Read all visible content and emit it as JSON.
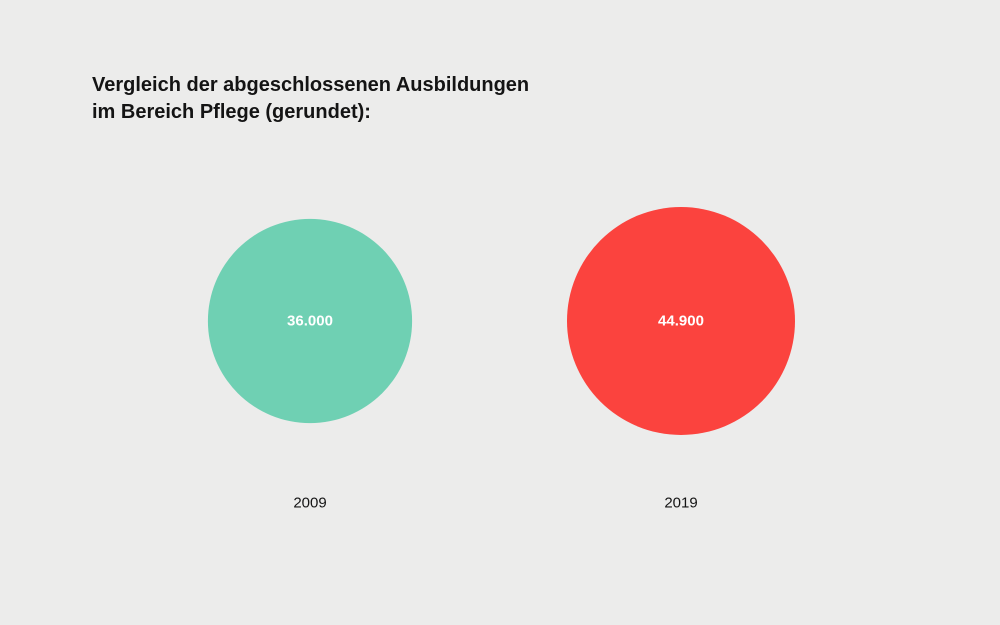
{
  "chart_data": {
    "type": "bubble",
    "title": "Vergleich der abgeschlossenen Ausbildungen im Bereich Pflege (gerundet):",
    "title_lines": [
      "Vergleich der abgeschlossenen Ausbildungen",
      "im Bereich Pflege (gerundet):"
    ],
    "categories": [
      "2009",
      "2019"
    ],
    "values": [
      36000,
      44900
    ],
    "value_labels": [
      "36.000",
      "44.900"
    ],
    "colors": [
      "#6fd0b3",
      "#fb433e"
    ]
  }
}
